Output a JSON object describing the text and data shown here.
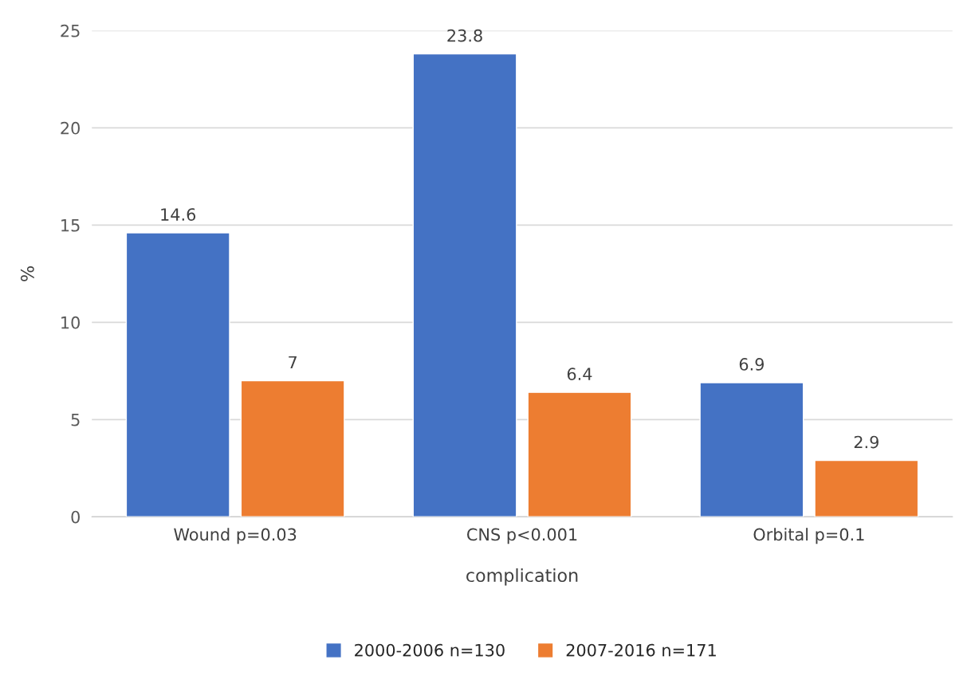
{
  "chart_data": {
    "type": "bar",
    "xlabel": "complication",
    "ylabel": "%",
    "categories": [
      "Wound p=0.03",
      "CNS p<0.001",
      "Orbital p=0.1"
    ],
    "series": [
      {
        "name": "2000-2006 n=130",
        "color": "#4472c4",
        "values": [
          14.6,
          23.8,
          6.9
        ]
      },
      {
        "name": "2007-2016 n=171",
        "color": "#ed7d31",
        "values": [
          7,
          6.4,
          2.9
        ]
      }
    ],
    "ylim": [
      0,
      25
    ],
    "yticks": [
      0,
      5,
      10,
      15,
      20,
      25
    ],
    "grid": "y",
    "legend": "bottom",
    "data_labels": true
  }
}
